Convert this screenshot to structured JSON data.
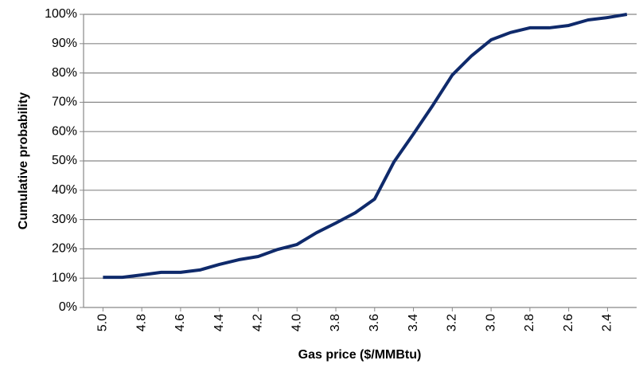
{
  "chart_data": {
    "type": "line",
    "xlabel": "Gas price ($/MMBtu)",
    "ylabel": "Cumulative probability",
    "x": [
      5.0,
      4.9,
      4.8,
      4.7,
      4.6,
      4.5,
      4.4,
      4.3,
      4.2,
      4.1,
      4.0,
      3.9,
      3.8,
      3.7,
      3.6,
      3.5,
      3.4,
      3.3,
      3.2,
      3.1,
      3.0,
      2.9,
      2.8,
      2.7,
      2.6,
      2.5,
      2.4,
      2.3
    ],
    "series": [
      {
        "name": "Cumulative probability",
        "color": "#0f2a6b",
        "values": [
          10.3,
          10.3,
          11.1,
          12,
          12,
          12.8,
          14.7,
          16.3,
          17.4,
          19.8,
          21.5,
          25.5,
          28.8,
          32.3,
          37,
          49.7,
          59.2,
          69,
          79.3,
          85.9,
          91.3,
          93.8,
          95.4,
          95.4,
          96.2,
          98.1,
          98.9,
          100
        ]
      }
    ],
    "xlim": [
      5.1,
      2.25
    ],
    "xticks": [
      {
        "value": 5.0,
        "label": "5.0"
      },
      {
        "value": 4.8,
        "label": "4.8"
      },
      {
        "value": 4.6,
        "label": "4.6"
      },
      {
        "value": 4.4,
        "label": "4.4"
      },
      {
        "value": 4.2,
        "label": "4.2"
      },
      {
        "value": 4.0,
        "label": "4.0"
      },
      {
        "value": 3.8,
        "label": "3.8"
      },
      {
        "value": 3.6,
        "label": "3.6"
      },
      {
        "value": 3.4,
        "label": "3.4"
      },
      {
        "value": 3.2,
        "label": "3.2"
      },
      {
        "value": 3.0,
        "label": "3.0"
      },
      {
        "value": 2.8,
        "label": "2.8"
      },
      {
        "value": 2.6,
        "label": "2.6"
      },
      {
        "value": 2.4,
        "label": "2.4"
      }
    ],
    "ylim": [
      0,
      100
    ],
    "yticks": [
      {
        "value": 0,
        "label": "0%"
      },
      {
        "value": 10,
        "label": "10%"
      },
      {
        "value": 20,
        "label": "20%"
      },
      {
        "value": 30,
        "label": "30%"
      },
      {
        "value": 40,
        "label": "40%"
      },
      {
        "value": 50,
        "label": "50%"
      },
      {
        "value": 60,
        "label": "60%"
      },
      {
        "value": 70,
        "label": "70%"
      },
      {
        "value": 80,
        "label": "80%"
      },
      {
        "value": 90,
        "label": "90%"
      },
      {
        "value": 100,
        "label": "100%"
      }
    ],
    "grid": true
  }
}
